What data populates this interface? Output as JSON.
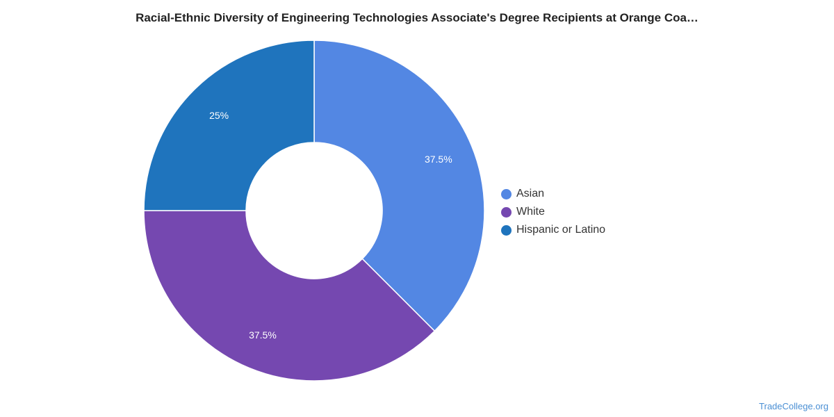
{
  "chart_data": {
    "type": "pie",
    "title": "Racial-Ethnic Diversity of Engineering Technologies Associate's Degree Recipients at Orange Coa…",
    "categories": [
      "Asian",
      "White",
      "Hispanic or Latino"
    ],
    "values": [
      37.5,
      37.5,
      25
    ],
    "labels": [
      "37.5%",
      "37.5%",
      "25%"
    ],
    "colors": [
      "#5387e3",
      "#7548b0",
      "#1f74bd"
    ],
    "donut": true,
    "legend_position": "right"
  },
  "source": "TradeCollege.org"
}
